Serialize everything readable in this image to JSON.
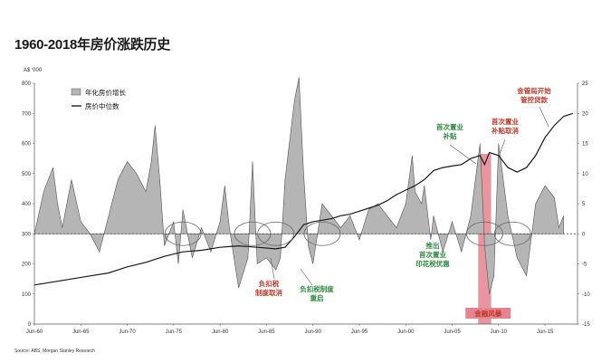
{
  "title": "1960-2018年房价涨跌历史",
  "chart_data": {
    "type": "area+line",
    "left_axis_unit": "A$ '000",
    "left_ylim": [
      0,
      800
    ],
    "left_ticks": [
      "800",
      "700",
      "600",
      "500",
      "400",
      "300",
      "200",
      "100",
      "0"
    ],
    "right_ylim": [
      -15,
      25
    ],
    "right_ticks": [
      "25",
      "20",
      "15",
      "10",
      "5",
      "0",
      "-5",
      "-10",
      "-15"
    ],
    "x_ticks": [
      "Jun-60",
      "Jun-65",
      "Jun-70",
      "Jun-75",
      "Jun-80",
      "Jun-85",
      "Jun-90",
      "Jun-95",
      "Jun-00",
      "Jun-05",
      "Jun-10",
      "Jun-15"
    ],
    "series": [
      {
        "name": "年化房价增长",
        "axis": "right",
        "style": "area",
        "x": [
          1960,
          1961,
          1962,
          1962.5,
          1963,
          1964,
          1965,
          1966,
          1967,
          1968,
          1969,
          1970,
          1971,
          1972,
          1972.6,
          1973,
          1973.5,
          1974,
          1975,
          1975.5,
          1976,
          1977,
          1978,
          1979,
          1980,
          1980.5,
          1981,
          1982,
          1983,
          1983.5,
          1984,
          1985,
          1986,
          1986.5,
          1987,
          1988,
          1988.5,
          1989,
          1989.5,
          1990,
          1991,
          1992,
          1993,
          1994,
          1995,
          1996,
          1997,
          1998,
          1999,
          2000,
          2000.7,
          2001,
          2001.7,
          2002,
          2002.7,
          2003,
          2004,
          2005,
          2006,
          2007,
          2008,
          2008.5,
          2009,
          2009.5,
          2010,
          2011,
          2012,
          2013,
          2014,
          2015,
          2016,
          2016.5,
          2017
        ],
        "values": [
          0,
          7,
          11,
          5,
          1,
          9,
          2,
          0,
          -3,
          3,
          9,
          12,
          10,
          7,
          12,
          18,
          9,
          -2,
          2,
          -5,
          4,
          -4,
          1,
          -3,
          2,
          8,
          1,
          -9,
          -4,
          12,
          -5,
          -4,
          -6,
          -4,
          9,
          22,
          26,
          10,
          -2,
          -5,
          5,
          3,
          1,
          3,
          -1,
          4,
          5,
          3,
          1,
          5,
          13,
          7,
          5,
          8,
          -1,
          3,
          -3,
          2,
          -3,
          3,
          15,
          -2,
          -10,
          -7,
          15,
          3,
          -4,
          -7,
          5,
          8,
          6,
          1,
          3
        ]
      },
      {
        "name": "房价中位数",
        "axis": "left",
        "style": "line",
        "x": [
          1960,
          1963,
          1966,
          1968,
          1970,
          1972,
          1974,
          1976,
          1978,
          1980,
          1982,
          1984,
          1986,
          1987,
          1988,
          1989,
          1990,
          1991,
          1992,
          1993,
          1994,
          1995,
          1996,
          1997,
          1998,
          1999,
          2000,
          2001,
          2002,
          2003,
          2004,
          2005,
          2006,
          2007,
          2008,
          2008.5,
          2009,
          2010,
          2011,
          2012,
          2013,
          2014,
          2015,
          2016,
          2017,
          2018
        ],
        "values": [
          130,
          145,
          160,
          170,
          190,
          205,
          225,
          240,
          245,
          255,
          260,
          255,
          250,
          255,
          290,
          330,
          340,
          345,
          350,
          360,
          365,
          375,
          385,
          395,
          410,
          430,
          445,
          460,
          480,
          510,
          520,
          525,
          530,
          550,
          560,
          530,
          570,
          560,
          520,
          505,
          520,
          560,
          620,
          660,
          690,
          700
        ]
      }
    ],
    "circles_years": [
      1976,
      1983.5,
      1986,
      1991,
      2008.5,
      2011.5
    ],
    "shaded_period": [
      2007.8,
      2009.2
    ],
    "annotations": [
      {
        "text": "首次置业",
        "text2": "补贴",
        "color": "#2e8b3e"
      },
      {
        "text": "首次置业",
        "text2": "补贴取消",
        "color": "#c0392b"
      },
      {
        "text": "金管局开始",
        "text2": "管控贷款",
        "color": "#c0392b"
      },
      {
        "text": "推出",
        "text2": "首次置业",
        "text3": "印花税优惠",
        "color": "#2e8b3e"
      },
      {
        "text": "负扣税",
        "text2": "制度取消",
        "color": "#c0392b"
      },
      {
        "text": "负扣税制度",
        "text2": "重启",
        "color": "#2e8b3e"
      },
      {
        "text": "金融风暴",
        "color": "#c0392b"
      }
    ],
    "source": "Source: ABS, Morgan Stanley Research"
  }
}
